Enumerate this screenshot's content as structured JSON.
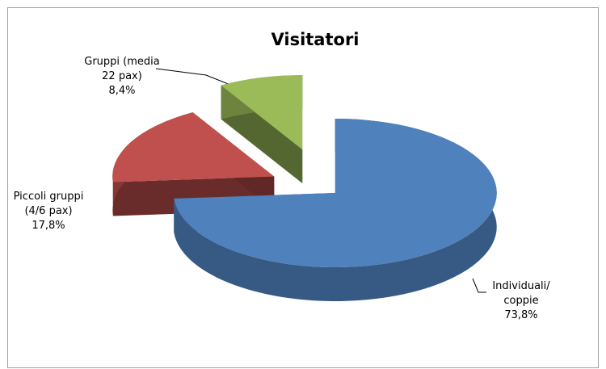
{
  "chart_data": {
    "type": "pie3d",
    "title": "Visitatori",
    "categories": [
      "Individuali/ coppie",
      "Piccoli gruppi (4/6 pax)",
      "Gruppi (media 22 pax)"
    ],
    "values": [
      73.8,
      17.8,
      8.4
    ],
    "value_labels": [
      "73,8%",
      "17,8%",
      "8,4%"
    ],
    "colors": [
      "#4f81bd",
      "#c0504d",
      "#9bbb59"
    ]
  }
}
